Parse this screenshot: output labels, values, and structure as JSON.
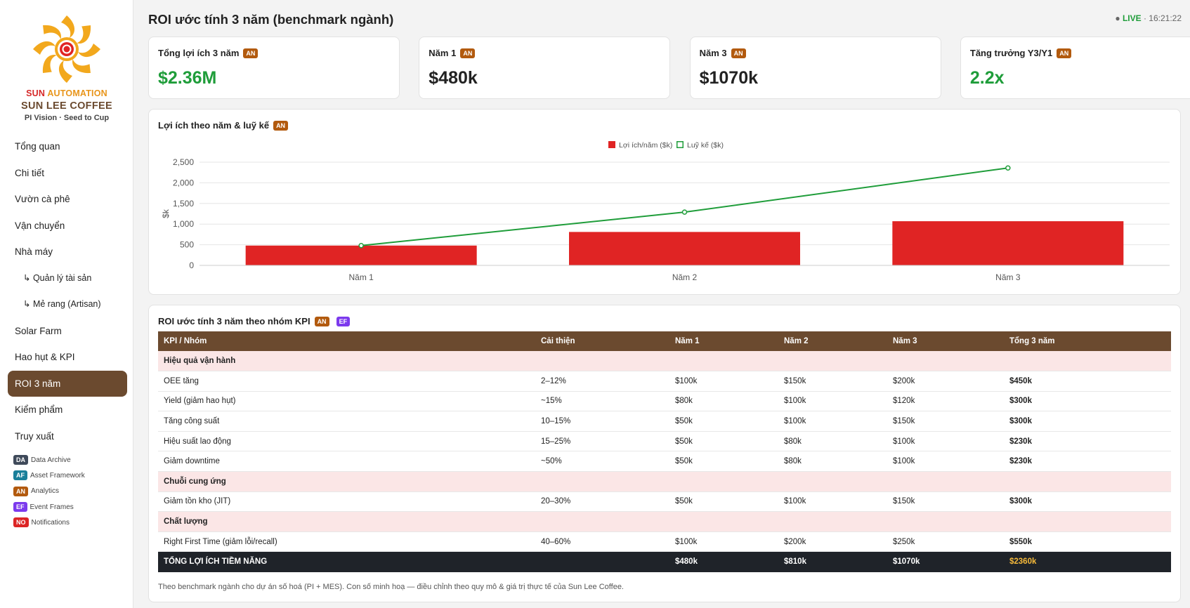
{
  "brand": {
    "automation_part1": "SUN",
    "automation_part2": "AUTOMATION",
    "company": "SUN LEE COFFEE",
    "tagline": "PI Vision · Seed to Cup"
  },
  "nav": [
    {
      "label": "Tổng quan",
      "sub": false,
      "active": false
    },
    {
      "label": "Chi tiết",
      "sub": false,
      "active": false
    },
    {
      "label": "Vườn cà phê",
      "sub": false,
      "active": false
    },
    {
      "label": "Vận chuyển",
      "sub": false,
      "active": false
    },
    {
      "label": "Nhà máy",
      "sub": false,
      "active": false
    },
    {
      "label": "↳ Quản lý tài sản",
      "sub": true,
      "active": false
    },
    {
      "label": "↳ Mẻ rang (Artisan)",
      "sub": true,
      "active": false
    },
    {
      "label": "Solar Farm",
      "sub": false,
      "active": false
    },
    {
      "label": "Hao hụt & KPI",
      "sub": false,
      "active": false
    },
    {
      "label": "ROI 3 năm",
      "sub": false,
      "active": true
    },
    {
      "label": "Kiểm phẩm",
      "sub": false,
      "active": false
    },
    {
      "label": "Truy xuất",
      "sub": false,
      "active": false
    }
  ],
  "legend": [
    {
      "tag": "DA",
      "label": "Data Archive",
      "cls": "t-da"
    },
    {
      "tag": "AF",
      "label": "Asset Framework",
      "cls": "t-af"
    },
    {
      "tag": "AN",
      "label": "Analytics",
      "cls": "t-an"
    },
    {
      "tag": "EF",
      "label": "Event Frames",
      "cls": "t-ef"
    },
    {
      "tag": "NO",
      "label": "Notifications",
      "cls": "t-no"
    }
  ],
  "header": {
    "title": "ROI ước tính 3 năm (benchmark ngành)",
    "live_dot": "●",
    "live_label": "LIVE",
    "live_time": "· 16:21:22"
  },
  "kpis": [
    {
      "label": "Tổng lợi ích 3 năm",
      "tag": "AN",
      "value": "$2.36M",
      "color": "green"
    },
    {
      "label": "Năm 1",
      "tag": "AN",
      "value": "$480k",
      "color": "dark"
    },
    {
      "label": "Năm 3",
      "tag": "AN",
      "value": "$1070k",
      "color": "dark"
    },
    {
      "label": "Tăng trưởng Y3/Y1",
      "tag": "AN",
      "value": "2.2x",
      "color": "green"
    }
  ],
  "chart_section": {
    "title": "Lợi ích theo năm & luỹ kế",
    "tag": "AN"
  },
  "chart_data": {
    "type": "bar",
    "categories": [
      "Năm 1",
      "Năm 2",
      "Năm 3"
    ],
    "series": [
      {
        "name": "Lợi ích/năm ($k)",
        "type": "bar",
        "color": "#e02424",
        "values": [
          480,
          810,
          1070
        ]
      },
      {
        "name": "Luỹ kế ($k)",
        "type": "line",
        "color": "#1f9d3a",
        "values": [
          480,
          1290,
          2360
        ]
      }
    ],
    "ylabel": "$k",
    "ylim": [
      0,
      2500
    ],
    "yticks": [
      "0",
      "500",
      "1,000",
      "1,500",
      "2,000",
      "2,500"
    ],
    "grid": true,
    "legend_position": "top-center"
  },
  "table_section": {
    "title": "ROI ước tính 3 năm theo nhóm KPI",
    "tags": [
      "AN",
      "EF"
    ],
    "columns": [
      "KPI / Nhóm",
      "Cải thiện",
      "Năm 1",
      "Năm 2",
      "Năm 3",
      "Tổng 3 năm"
    ],
    "rows": [
      {
        "group": "Hiệu quả vận hành"
      },
      {
        "cells": [
          "OEE tăng",
          "2–12%",
          "$100k",
          "$150k",
          "$200k",
          "$450k"
        ]
      },
      {
        "cells": [
          "Yield (giảm hao hụt)",
          "~15%",
          "$80k",
          "$100k",
          "$120k",
          "$300k"
        ]
      },
      {
        "cells": [
          "Tăng công suất",
          "10–15%",
          "$50k",
          "$100k",
          "$150k",
          "$300k"
        ]
      },
      {
        "cells": [
          "Hiệu suất lao động",
          "15–25%",
          "$50k",
          "$80k",
          "$100k",
          "$230k"
        ]
      },
      {
        "cells": [
          "Giảm downtime",
          "~50%",
          "$50k",
          "$80k",
          "$100k",
          "$230k"
        ]
      },
      {
        "group": "Chuỗi cung ứng"
      },
      {
        "cells": [
          "Giảm tồn kho (JIT)",
          "20–30%",
          "$50k",
          "$100k",
          "$150k",
          "$300k"
        ]
      },
      {
        "group": "Chất lượng"
      },
      {
        "cells": [
          "Right First Time (giảm lỗi/recall)",
          "40–60%",
          "$100k",
          "$200k",
          "$250k",
          "$550k"
        ]
      }
    ],
    "total": [
      "TỔNG LỢI ÍCH TIỀM NĂNG",
      "",
      "$480k",
      "$810k",
      "$1070k",
      "$2360k"
    ],
    "footnote": "Theo benchmark ngành cho dự án số hoá (PI + MES). Con số minh hoạ — điều chỉnh theo quy mô & giá trị thực tế của Sun Lee Coffee."
  }
}
